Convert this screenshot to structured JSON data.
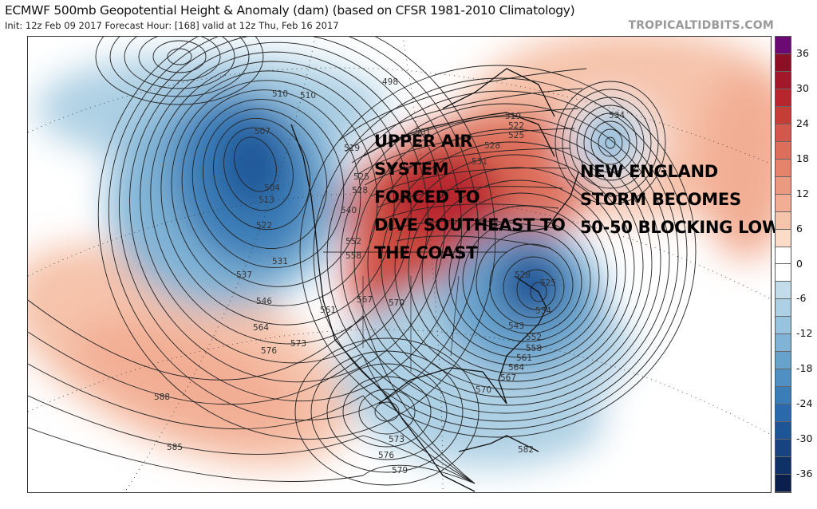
{
  "header": {
    "title": "ECMWF 500mb Geopotential Height & Anomaly (dam) (based on CFSR 1981-2010 Climatology)",
    "subtitle": "Init: 12z Feb 09 2017   Forecast Hour: [168]   valid at 12z Thu, Feb 16 2017",
    "brand": "TROPICALTIDBITS.COM"
  },
  "colorbar": {
    "ticks": [
      "36",
      "30",
      "24",
      "18",
      "12",
      "6",
      "0",
      "-6",
      "-12",
      "-18",
      "-24",
      "-30",
      "-36"
    ],
    "colors": [
      "#6b0a72",
      "#8c0f25",
      "#a3172a",
      "#b8252d",
      "#c63d36",
      "#d3574a",
      "#dd6e5a",
      "#e5846b",
      "#ec9a7f",
      "#f2ae94",
      "#f6c3ab",
      "#fadcc8",
      "#ffffff",
      "#ffffff",
      "#c3dcea",
      "#aed0e4",
      "#97c3de",
      "#80b4d6",
      "#67a2cc",
      "#4f8fc2",
      "#3a7db7",
      "#2a69ab",
      "#1e5597",
      "#174380",
      "#0f3266",
      "#0a1f4d"
    ]
  },
  "annotations": {
    "left": [
      "UPPER AIR",
      "SYSTEM",
      "FORCED TO",
      "DIVE SOUTHEAST TO",
      "THE COAST"
    ],
    "right": [
      "NEW ENGLAND",
      "STORM BECOMES",
      "50-50 BLOCKING LOW"
    ]
  },
  "contour_labels": [
    "498",
    "510",
    "510",
    "507",
    "504",
    "513",
    "522",
    "531",
    "537",
    "546",
    "564",
    "576",
    "573",
    "588",
    "585",
    "519",
    "525",
    "528",
    "552",
    "558",
    "561",
    "567",
    "570",
    "519",
    "522",
    "525",
    "528",
    "531",
    "540",
    "528",
    "525",
    "534",
    "534",
    "543",
    "552",
    "558",
    "561",
    "564",
    "567",
    "570",
    "573",
    "576",
    "579",
    "582",
    "501"
  ]
}
